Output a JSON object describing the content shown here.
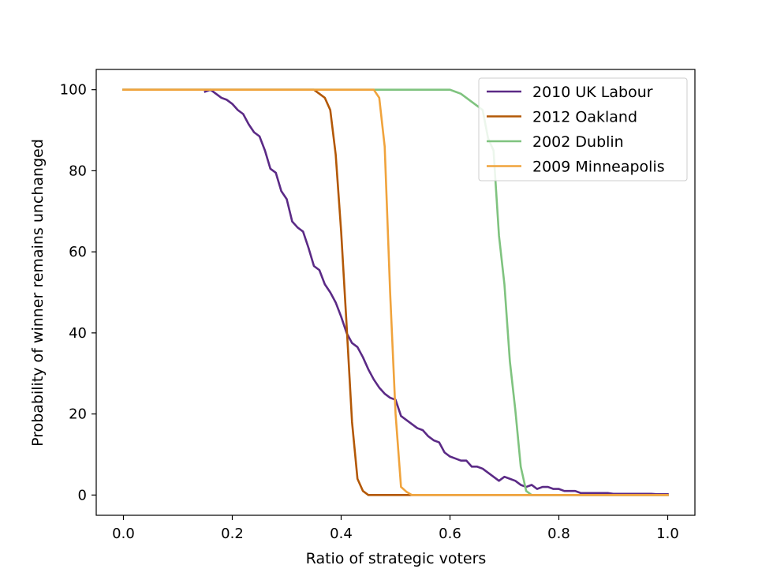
{
  "chart_data": {
    "type": "line",
    "title": "",
    "xlabel": "Ratio of strategic voters",
    "ylabel": "Probability of winner remains unchanged",
    "xlim": [
      -0.05,
      1.05
    ],
    "ylim": [
      -5,
      105
    ],
    "xticks": [
      0.0,
      0.2,
      0.4,
      0.6,
      0.8,
      1.0
    ],
    "xtick_labels": [
      "0.0",
      "0.2",
      "0.4",
      "0.6",
      "0.8",
      "1.0"
    ],
    "yticks": [
      0,
      20,
      40,
      60,
      80,
      100
    ],
    "ytick_labels": [
      "0",
      "20",
      "40",
      "60",
      "80",
      "100"
    ],
    "grid": false,
    "legend_position": "top-right",
    "series": [
      {
        "name": "2010 UK Labour",
        "color": "#5b2a86",
        "x": [
          0.15,
          0.16,
          0.17,
          0.18,
          0.19,
          0.2,
          0.21,
          0.22,
          0.23,
          0.24,
          0.25,
          0.26,
          0.27,
          0.28,
          0.29,
          0.3,
          0.31,
          0.32,
          0.33,
          0.34,
          0.35,
          0.36,
          0.37,
          0.38,
          0.39,
          0.4,
          0.41,
          0.42,
          0.43,
          0.44,
          0.45,
          0.46,
          0.47,
          0.48,
          0.49,
          0.5,
          0.51,
          0.52,
          0.53,
          0.54,
          0.55,
          0.56,
          0.57,
          0.58,
          0.59,
          0.6,
          0.61,
          0.62,
          0.63,
          0.64,
          0.65,
          0.66,
          0.67,
          0.68,
          0.69,
          0.7,
          0.71,
          0.72,
          0.73,
          0.74,
          0.75,
          0.76,
          0.77,
          0.78,
          0.79,
          0.8,
          0.81,
          0.82,
          0.83,
          0.84,
          0.85,
          0.86,
          0.87,
          0.88,
          0.89,
          0.9,
          0.91,
          0.92,
          0.93,
          0.94,
          0.95,
          0.96,
          0.97,
          0.98,
          0.99,
          1.0
        ],
        "y": [
          99.5,
          100,
          99,
          98,
          97.5,
          96.5,
          95,
          94,
          91.5,
          89.5,
          88.5,
          85,
          80.5,
          79.5,
          75,
          73,
          67.5,
          66,
          65,
          61,
          56.5,
          55.5,
          52,
          50,
          47.5,
          44,
          40,
          37.5,
          36.5,
          34,
          31,
          28.5,
          26.5,
          25,
          24,
          23.5,
          19.5,
          18.5,
          17.5,
          16.5,
          16,
          14.5,
          13.5,
          13,
          10.5,
          9.5,
          9,
          8.5,
          8.5,
          7,
          7,
          6.5,
          5.5,
          4.5,
          3.5,
          4.5,
          4,
          3.5,
          2.5,
          2,
          2.5,
          1.5,
          2,
          2,
          1.5,
          1.5,
          1,
          1,
          1,
          0.5,
          0.5,
          0.5,
          0.5,
          0.5,
          0.5,
          0.3,
          0.3,
          0.3,
          0.3,
          0.3,
          0.3,
          0.3,
          0.3,
          0.2,
          0.2,
          0.2
        ]
      },
      {
        "name": "2012 Oakland",
        "color": "#b35806",
        "x": [
          0,
          0.34,
          0.35,
          0.36,
          0.37,
          0.38,
          0.39,
          0.4,
          0.41,
          0.42,
          0.43,
          0.44,
          0.45,
          0.46,
          0.48,
          0.5,
          0.52,
          0.55,
          0.6,
          0.7,
          0.8,
          0.9,
          1.0
        ],
        "y": [
          100,
          100,
          100,
          99,
          98,
          95,
          84,
          65,
          42,
          18,
          4,
          1,
          0,
          0,
          0,
          0,
          0,
          0,
          0,
          0,
          0,
          0,
          0
        ]
      },
      {
        "name": "2002 Dublin",
        "color": "#7fc37f",
        "x": [
          0,
          0.6,
          0.61,
          0.62,
          0.63,
          0.64,
          0.65,
          0.66,
          0.67,
          0.68,
          0.69,
          0.7,
          0.71,
          0.72,
          0.73,
          0.74,
          0.75,
          0.76,
          0.8,
          0.9,
          1.0
        ],
        "y": [
          100,
          100,
          99.5,
          99,
          98,
          97,
          96,
          95,
          88,
          85,
          64,
          52,
          33,
          21,
          7,
          1,
          0,
          0,
          0,
          0,
          0
        ]
      },
      {
        "name": "2009 Minneapolis",
        "color": "#f0a33c",
        "x": [
          0,
          0.45,
          0.46,
          0.47,
          0.48,
          0.49,
          0.5,
          0.51,
          0.52,
          0.53,
          0.55,
          0.6,
          0.7,
          0.8,
          0.9,
          1.0
        ],
        "y": [
          100,
          100,
          100,
          98,
          86,
          50,
          20,
          2,
          0.8,
          0,
          0,
          0,
          0,
          0,
          0,
          0
        ]
      }
    ]
  }
}
